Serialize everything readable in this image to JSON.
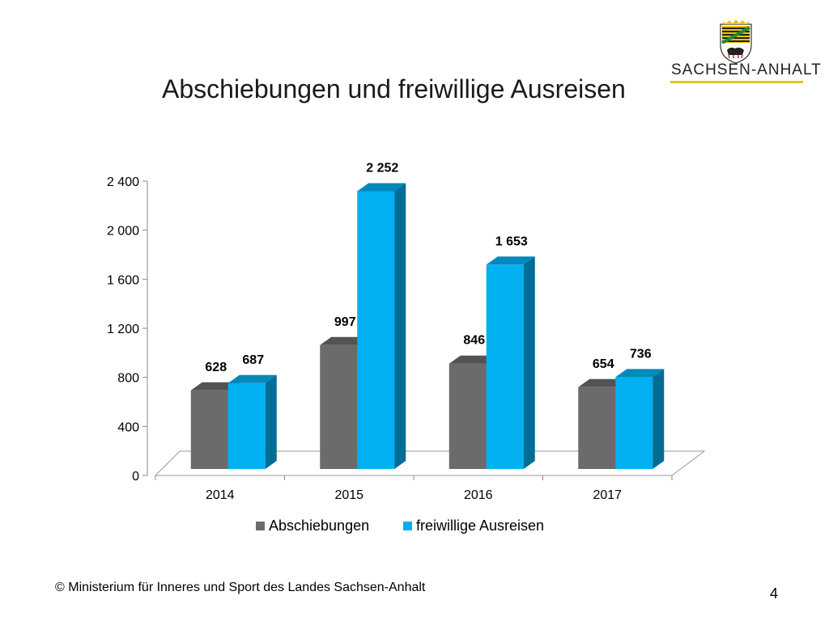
{
  "slide": {
    "title": "Abschiebungen und freiwillige Ausreisen",
    "brand": "SACHSEN-ANHALT",
    "footer": "© Ministerium für Inneres und Sport des Landes Sachsen-Anhalt",
    "page_number": "4"
  },
  "colors": {
    "series1": "#6b6b6b",
    "series2": "#00b0f0",
    "brand_line": "#e8c21a"
  },
  "chart_data": {
    "type": "bar",
    "title": "",
    "xlabel": "",
    "ylabel": "",
    "categories": [
      "2014",
      "2015",
      "2016",
      "2017"
    ],
    "series": [
      {
        "name": "Abschiebungen",
        "values": [
          628,
          997,
          846,
          654
        ],
        "labels": [
          "628",
          "997",
          "846",
          "654"
        ]
      },
      {
        "name": "freiwillige Ausreisen",
        "values": [
          687,
          2252,
          1653,
          736
        ],
        "labels": [
          "687",
          "2 252",
          "1 653",
          "736"
        ]
      }
    ],
    "ylim": [
      0,
      2400
    ],
    "yticks": [
      0,
      400,
      800,
      1200,
      1600,
      2000,
      2400
    ],
    "ytick_labels": [
      "0",
      "400",
      "800",
      "1 200",
      "1 600",
      "2 000",
      "2 400"
    ],
    "legend": "bottom",
    "grid": false,
    "style": "3d-clustered-column"
  }
}
